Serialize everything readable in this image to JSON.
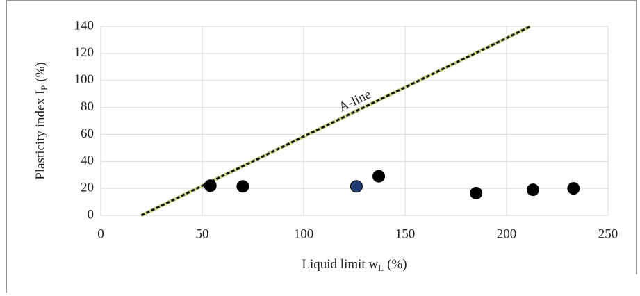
{
  "chart_data": {
    "type": "scatter",
    "x_label": {
      "main": "Liquid limit w",
      "sub": "L",
      "tail": "(%)"
    },
    "y_label": {
      "main": "Plasticity index  I",
      "sub": "P",
      "tail": "(%)"
    },
    "xlim": [
      0,
      250
    ],
    "xticks": [
      0,
      50,
      100,
      150,
      200,
      250
    ],
    "ylim": [
      0,
      140
    ],
    "yticks": [
      0,
      20,
      40,
      60,
      80,
      100,
      120,
      140
    ],
    "grid": true,
    "series": [
      {
        "color": "#000000",
        "x": [
          54,
          70,
          137,
          185,
          213,
          233
        ],
        "values": [
          22,
          21.5,
          29,
          16.5,
          19,
          20
        ]
      },
      {
        "color": "#1f3b73",
        "x": [
          126
        ],
        "values": [
          21.5
        ]
      }
    ],
    "a_line": {
      "label": "A-line",
      "color": "#c9d98c",
      "x": [
        20,
        211.8
      ],
      "values": [
        0,
        140
      ]
    }
  }
}
